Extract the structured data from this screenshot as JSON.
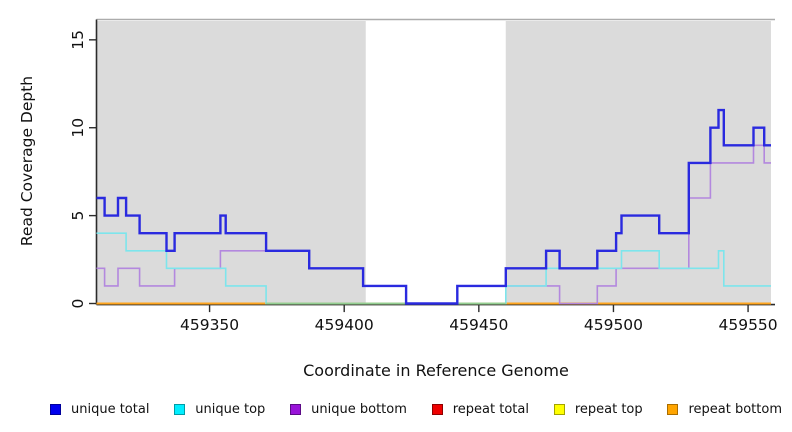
{
  "chart_data": {
    "type": "line",
    "subtype": "step-after-coverage-plot",
    "title": "",
    "xlabel": "Coordinate in Reference Genome",
    "ylabel": "Read Coverage Depth",
    "xlim": [
      459308,
      459560
    ],
    "ylim": [
      0,
      16.1
    ],
    "grid": false,
    "x_ticks": [
      {
        "value": 459350,
        "label": "459350"
      },
      {
        "value": 459400,
        "label": "459400"
      },
      {
        "value": 459450,
        "label": "459450"
      },
      {
        "value": 459500,
        "label": "459500"
      },
      {
        "value": 459550,
        "label": "459550"
      }
    ],
    "y_ticks": [
      {
        "value": 0,
        "label": "0"
      },
      {
        "value": 5,
        "label": "5"
      },
      {
        "value": 10,
        "label": "10"
      },
      {
        "value": 15,
        "label": "15"
      }
    ],
    "shaded_regions": [
      {
        "name": "masked-region-left",
        "x0": 459308,
        "x1": 459408,
        "color": "#DBDBDB"
      },
      {
        "name": "masked-region-right",
        "x0": 459460,
        "x1": 459558.5,
        "color": "#DBDBDB"
      }
    ],
    "series": [
      {
        "name": "repeat total",
        "color": "#DD0000",
        "line_width": 1.6,
        "z": 1,
        "x_end": 459558.5,
        "points": [
          [
            459308,
            0
          ]
        ]
      },
      {
        "name": "repeat top",
        "color": "#F2F200",
        "line_width": 1.6,
        "z": 2,
        "x_end": 459558.5,
        "points": [
          [
            459308,
            0
          ]
        ]
      },
      {
        "name": "repeat bottom",
        "color": "#FFA51E",
        "line_width": 2.0,
        "z": 3,
        "x_end": 459558.5,
        "points": [
          [
            459308,
            0
          ]
        ]
      },
      {
        "name": "unique bottom",
        "color": "#B388DE",
        "line_width": 1.6,
        "z": 4,
        "x_end": 459558.5,
        "points": [
          [
            459308,
            2
          ],
          [
            459311,
            1
          ],
          [
            459316,
            2
          ],
          [
            459324,
            1
          ],
          [
            459337,
            2
          ],
          [
            459354,
            3
          ],
          [
            459387,
            2
          ],
          [
            459407,
            1
          ],
          [
            459423,
            0
          ],
          [
            459442,
            1
          ],
          [
            459480,
            0
          ],
          [
            459494,
            1
          ],
          [
            459501,
            2
          ],
          [
            459528,
            6
          ],
          [
            459536,
            8
          ],
          [
            459552,
            9
          ],
          [
            459556,
            8
          ]
        ]
      },
      {
        "name": "unique top",
        "color": "#7DE5EC",
        "line_width": 1.6,
        "z": 5,
        "x_end": 459558.5,
        "points": [
          [
            459308,
            4
          ],
          [
            459319,
            3
          ],
          [
            459334,
            2
          ],
          [
            459356,
            1
          ],
          [
            459371,
            0
          ],
          [
            459460,
            1
          ],
          [
            459475,
            2
          ],
          [
            459503,
            3
          ],
          [
            459517,
            2
          ],
          [
            459539,
            3
          ],
          [
            459541,
            1
          ]
        ]
      },
      {
        "name": "unique total",
        "color": "#2A2ADF",
        "line_width": 2.4,
        "z": 7,
        "x_end": 459558.5,
        "points": [
          [
            459308,
            6
          ],
          [
            459311,
            5
          ],
          [
            459316,
            6
          ],
          [
            459319,
            5
          ],
          [
            459324,
            4
          ],
          [
            459334,
            3
          ],
          [
            459337,
            4
          ],
          [
            459354,
            5
          ],
          [
            459356,
            4
          ],
          [
            459371,
            3
          ],
          [
            459387,
            2
          ],
          [
            459407,
            1
          ],
          [
            459423,
            0
          ],
          [
            459442,
            1
          ],
          [
            459460,
            2
          ],
          [
            459475,
            3
          ],
          [
            459480,
            2
          ],
          [
            459494,
            3
          ],
          [
            459501,
            4
          ],
          [
            459503,
            5
          ],
          [
            459517,
            4
          ],
          [
            459528,
            8
          ],
          [
            459536,
            10
          ],
          [
            459539,
            11
          ],
          [
            459541,
            9
          ],
          [
            459552,
            10
          ],
          [
            459556,
            9
          ]
        ]
      }
    ],
    "overlays": [
      {
        "name": "cyan-over-yellow-blend",
        "color": "#92CF92",
        "line_width": 1.8,
        "z": 6,
        "y": 0,
        "x0": 459371,
        "x1": 459460
      }
    ],
    "legend_position": "bottom"
  },
  "legend": {
    "items": [
      {
        "label": "unique total",
        "fill": "#0000EE",
        "border": "#00009A"
      },
      {
        "label": "unique top",
        "fill": "#00EEFF",
        "border": "#009CA6"
      },
      {
        "label": "unique bottom",
        "fill": "#9913D9",
        "border": "#5C0B86"
      },
      {
        "label": "repeat total",
        "fill": "#EE0000",
        "border": "#8E0000"
      },
      {
        "label": "repeat top",
        "fill": "#FFFF00",
        "border": "#A3A300"
      },
      {
        "label": "repeat bottom",
        "fill": "#FFA500",
        "border": "#AA6D00"
      }
    ]
  },
  "style": {
    "plot_background": "#ffffff",
    "masked_region_color": "#DBDBDB",
    "plot_top_border_color": "#ACACAC",
    "axis_color": "#2B2B2B",
    "tick_label_color": "#111111"
  }
}
